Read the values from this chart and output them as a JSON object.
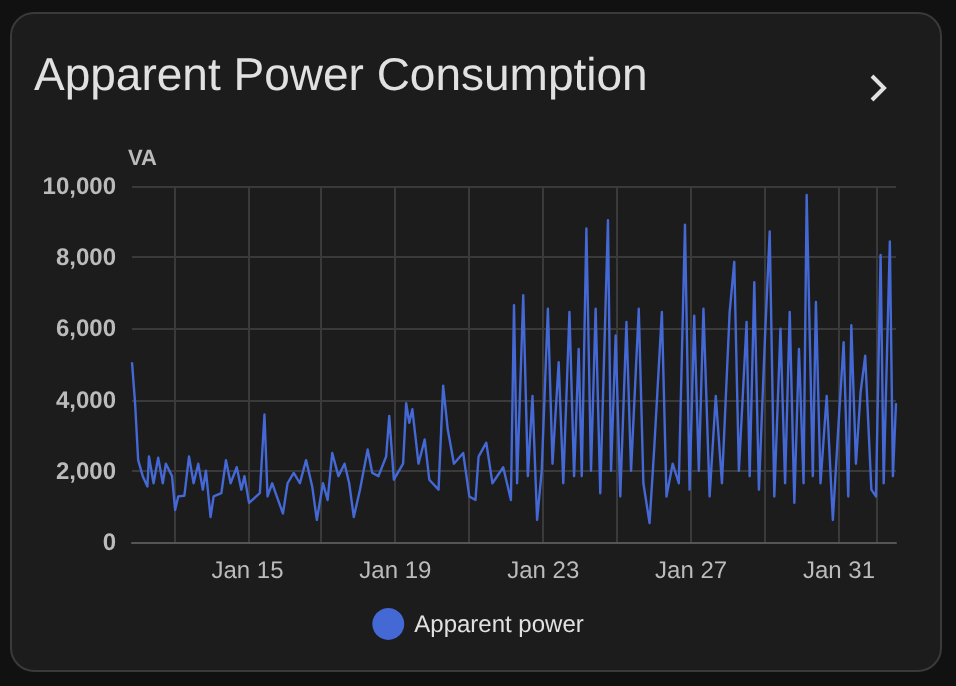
{
  "chart_data": {
    "type": "line",
    "title": "Apparent Power Consumption",
    "ylabel": "VA",
    "x": [
      "--01-11T21:00",
      "--01-11T23:00",
      "--01-12T01:00",
      "--01-12T04:00",
      "--01-12T07:00",
      "--01-12T08:00",
      "--01-12T11:00",
      "--01-12T14:00",
      "--01-12T17:00",
      "--01-12T19:00",
      "--01-12T23:00",
      "--01-13T01:00",
      "--01-13T03:00",
      "--01-13T07:00",
      "--01-13T10:00",
      "--01-13T13:00",
      "--01-13T16:00",
      "--01-13T19:00",
      "--01-13T21:00",
      "--01-14T00:00",
      "--01-14T02:00",
      "--01-14T07:00",
      "--01-14T10:00",
      "--01-14T13:00",
      "--01-14T17:00",
      "--01-14T20:00",
      "--01-14T22:00",
      "--01-15T01:00",
      "--01-15T08:00",
      "--01-15T11:00",
      "--01-15T13:00",
      "--01-15T16:00",
      "--01-15T19:00",
      "--01-15T23:00",
      "--01-16T02:00",
      "--01-16T06:00",
      "--01-16T10:00",
      "--01-16T14:00",
      "--01-16T18:00",
      "--01-16T21:00",
      "--01-17T01:00",
      "--01-17T04:00",
      "--01-17T07:00",
      "--01-17T11:00",
      "--01-17T15:00",
      "--01-17T18:00",
      "--01-17T21:00",
      "--01-18T01:00",
      "--01-18T06:00",
      "--01-18T09:00",
      "--01-18T13:00",
      "--01-18T18:00",
      "--01-18T20:00",
      "--01-18T23:00",
      "--01-19T05:00",
      "--01-19T07:00",
      "--01-19T09:00",
      "--01-19T11:00",
      "--01-19T15:00",
      "--01-19T19:00",
      "--01-19T22:00",
      "--01-20T04:00",
      "--01-20T07:00",
      "--01-20T10:00",
      "--01-20T14:00",
      "--01-20T20:00",
      "--01-21T00:00",
      "--01-21T04:00",
      "--01-21T06:00",
      "--01-21T11:00",
      "--01-21T15:00",
      "--01-21T22:00",
      "--01-22T03:00",
      "--01-22T05:00",
      "--01-22T07:00",
      "--01-22T11:00",
      "--01-22T14:00",
      "--01-22T17:00",
      "--01-22T20:00",
      "--01-22T23:00",
      "--01-23T03:00",
      "--01-23T06:00",
      "--01-23T10:00",
      "--01-23T13:00",
      "--01-23T17:00",
      "--01-23T20:00",
      "--01-23T23:00",
      "--01-24T01:00",
      "--01-24T04:00",
      "--01-24T07:00",
      "--01-24T10:00",
      "--01-24T13:00",
      "--01-24T18:00",
      "--01-24T20:00",
      "--01-24T23:00",
      "--01-25T02:00",
      "--01-25T06:00",
      "--01-25T09:00",
      "--01-25T14:00",
      "--01-25T17:00",
      "--01-25T21:00",
      "--01-26T00:00",
      "--01-26T05:00",
      "--01-26T08:00",
      "--01-26T12:00",
      "--01-26T16:00",
      "--01-26T20:00",
      "--01-26T23:00",
      "--01-27T02:00",
      "--01-27T05:00",
      "--01-27T08:00",
      "--01-27T12:00",
      "--01-27T16:00",
      "--01-27T20:00",
      "--01-28T01:00",
      "--01-28T04:00",
      "--01-28T07:00",
      "--01-28T12:00",
      "--01-28T14:00",
      "--01-28T17:00",
      "--01-28T20:00",
      "--01-29T00:00",
      "--01-29T03:00",
      "--01-29T06:00",
      "--01-29T10:00",
      "--01-29T13:00",
      "--01-29T16:00",
      "--01-29T19:00",
      "--01-29T22:00",
      "--01-30T01:00",
      "--01-30T03:00",
      "--01-30T07:00",
      "--01-30T09:00",
      "--01-30T12:00",
      "--01-30T16:00",
      "--01-30T20:00",
      "--01-31T00:00",
      "--01-31T03:00",
      "--01-31T06:00",
      "--01-31T08:00",
      "--01-31T11:00",
      "--01-31T14:00",
      "--01-31T17:00",
      "--01-31T21:00",
      "--02-01T00:00",
      "--02-01T03:00",
      "--02-01T05:00",
      "--02-01T09:00",
      "--02-01T11:00",
      "--02-01T13:00"
    ],
    "series": [
      {
        "name": "Apparent power",
        "color": "#4468d4",
        "values": [
          5050,
          3900,
          2300,
          1850,
          1560,
          2400,
          1650,
          2370,
          1650,
          2200,
          1850,
          900,
          1280,
          1300,
          2400,
          1650,
          2200,
          1470,
          2000,
          700,
          1280,
          1370,
          2300,
          1650,
          2100,
          1470,
          1850,
          1100,
          1370,
          3580,
          1280,
          1650,
          1280,
          800,
          1650,
          1940,
          1650,
          2300,
          1560,
          620,
          1650,
          1180,
          2500,
          1850,
          2200,
          1650,
          700,
          1470,
          2600,
          1940,
          1850,
          2400,
          3540,
          1750,
          2200,
          3900,
          3350,
          3730,
          2200,
          2880,
          1750,
          1470,
          4390,
          3160,
          2200,
          2500,
          1280,
          1180,
          2400,
          2790,
          1650,
          2100,
          1180,
          6650,
          1650,
          6930,
          1850,
          4100,
          620,
          2000,
          6550,
          2200,
          5050,
          1650,
          6460,
          1850,
          5420,
          1850,
          8810,
          2000,
          6550,
          1370,
          9040,
          2000,
          5800,
          1280,
          6180,
          2000,
          6550,
          1650,
          530,
          2600,
          6460,
          1280,
          2200,
          1650,
          8910,
          1470,
          6360,
          2000,
          6550,
          1280,
          4100,
          1650,
          6460,
          7870,
          2000,
          6180,
          1850,
          7300,
          1470,
          5800,
          8720,
          1280,
          5990,
          1650,
          6460,
          1100,
          5420,
          1650,
          9750,
          1850,
          6740,
          1650,
          4100,
          620,
          3540,
          5610,
          1280,
          6090,
          2200,
          4200,
          5230,
          1470,
          1280,
          8060,
          1650,
          8440,
          1850,
          3900
        ]
      }
    ],
    "xlim": [
      "--01-11T21:00",
      "--02-01T13:00"
    ],
    "xticks": [
      {
        "value": "--01-13",
        "label": null
      },
      {
        "value": "--01-15",
        "label": "Jan 15"
      },
      {
        "value": "--01-17",
        "label": null
      },
      {
        "value": "--01-19",
        "label": "Jan 19"
      },
      {
        "value": "--01-21",
        "label": null
      },
      {
        "value": "--01-23",
        "label": "Jan 23"
      },
      {
        "value": "--01-25",
        "label": null
      },
      {
        "value": "--01-27",
        "label": "Jan 27"
      },
      {
        "value": "--01-29",
        "label": null
      },
      {
        "value": "--01-31",
        "label": "Jan 31"
      },
      {
        "value": "--02-01",
        "label": null
      }
    ],
    "ylim": [
      0,
      10000
    ],
    "yticks": [
      0,
      {
        "value": 2000,
        "label": "2,000"
      },
      {
        "value": 4000,
        "label": "4,000"
      },
      {
        "value": 6000,
        "label": "6,000"
      },
      {
        "value": 8000,
        "label": "8,000"
      },
      {
        "value": 10000,
        "label": "10,000"
      }
    ],
    "grid": true,
    "legend": "bottom",
    "marker": "none",
    "line_style": "solid"
  }
}
